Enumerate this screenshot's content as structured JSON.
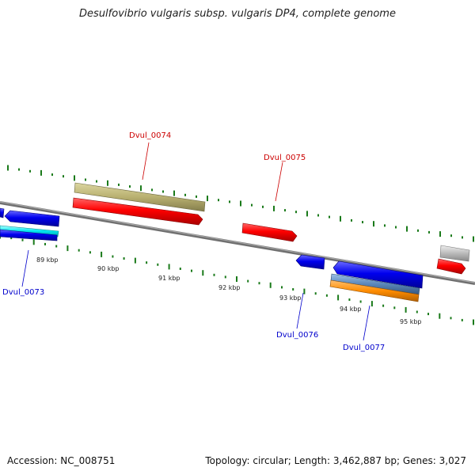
{
  "title": "Desulfovibrio vulgaris subsp. vulgaris DP4, complete genome",
  "footer": {
    "accession": "Accession: NC_008751",
    "summary": "Topology: circular; Length: 3,462,887 bp; Genes: 3,027"
  },
  "ticks": [
    "89 kbp",
    "90 kbp",
    "91 kbp",
    "92 kbp",
    "93 kbp",
    "94 kbp",
    "95 kbp"
  ],
  "genes": [
    {
      "name": "Dvul_0073",
      "color": "#0000cc"
    },
    {
      "name": "Dvul_0074",
      "color": "#cc0000"
    },
    {
      "name": "Dvul_0075",
      "color": "#cc0000"
    },
    {
      "name": "Dvul_0076",
      "color": "#0000cc"
    },
    {
      "name": "Dvul_0077",
      "color": "#0000cc"
    }
  ],
  "colors": {
    "backbone": "#808080",
    "gc_ticks": "#1a7a1a",
    "forward_cds": "#ff0000",
    "reverse_cds": "#0000ee",
    "rna": "#00e5ee",
    "misc_feature": "#b8b070",
    "orange_feature": "#ff8c00",
    "steel_feature": "#5a86b8",
    "grey_feature": "#bbbbbb"
  }
}
